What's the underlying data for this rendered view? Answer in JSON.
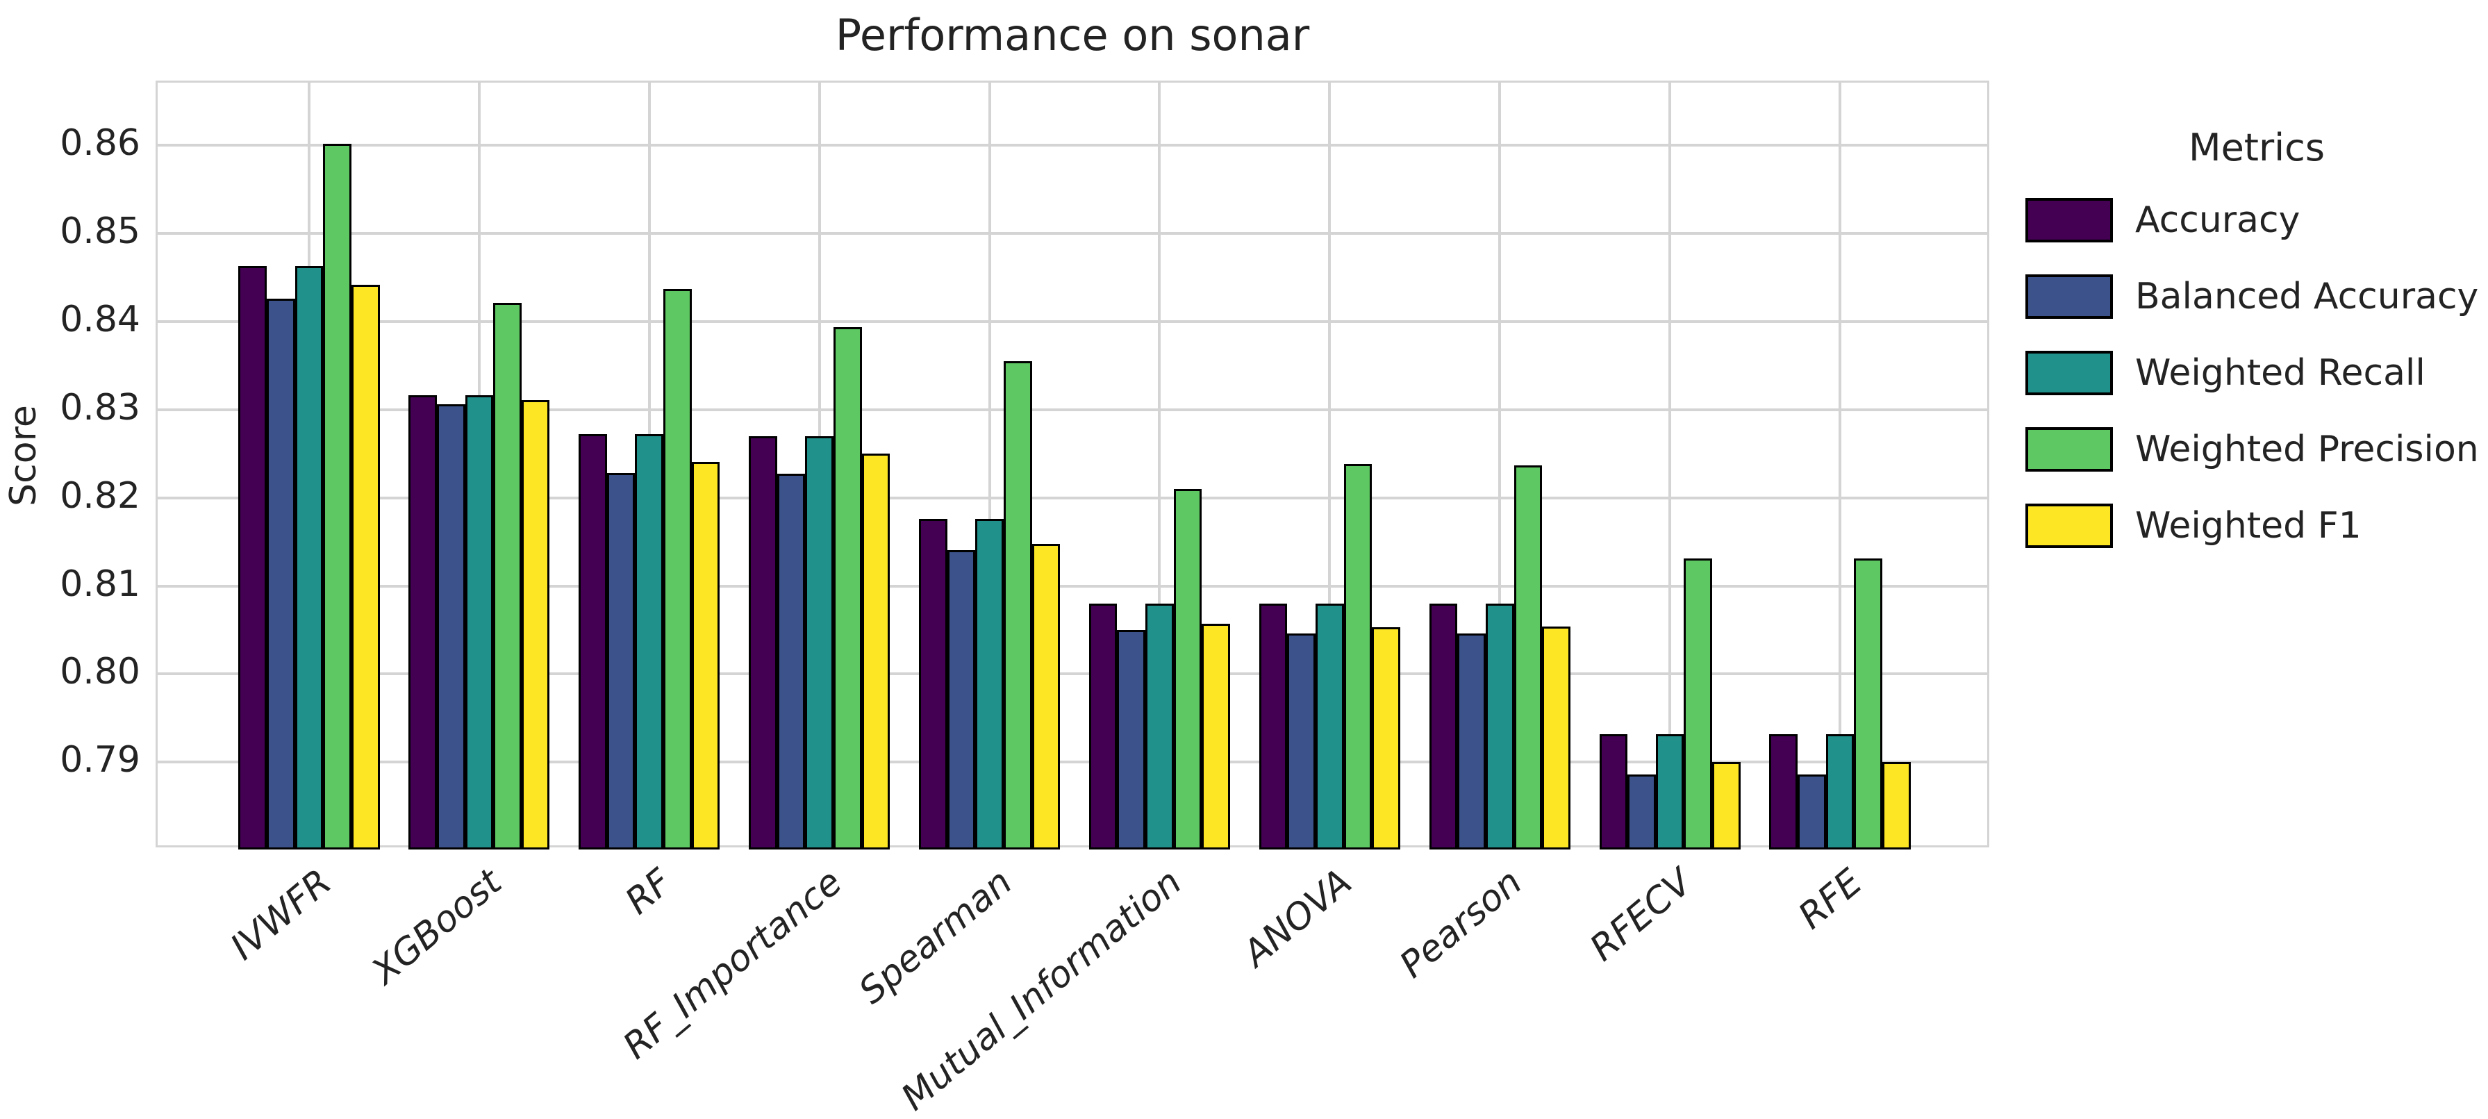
{
  "chart_data": {
    "type": "bar",
    "title": "Performance on sonar",
    "xlabel": "",
    "ylabel": "Score",
    "legend_title": "Metrics",
    "legend_position": "right",
    "grid": true,
    "categories": [
      "IVWFR",
      "XGBoost",
      "RF",
      "RF_Importance",
      "Spearman",
      "Mutual_Information",
      "ANOVA",
      "Pearson",
      "RFECV",
      "RFE"
    ],
    "series": [
      {
        "name": "Accuracy",
        "color": "#440154",
        "values": [
          0.8463,
          0.8316,
          0.8272,
          0.827,
          0.8176,
          0.808,
          0.808,
          0.808,
          0.7932,
          0.7932
        ]
      },
      {
        "name": "Balanced Accuracy",
        "color": "#3b528b",
        "values": [
          0.8426,
          0.8306,
          0.8228,
          0.8227,
          0.8141,
          0.805,
          0.8046,
          0.8046,
          0.7886,
          0.7886
        ]
      },
      {
        "name": "Weighted Recall",
        "color": "#21918c",
        "values": [
          0.8463,
          0.8316,
          0.8272,
          0.827,
          0.8176,
          0.808,
          0.808,
          0.808,
          0.7932,
          0.7932
        ]
      },
      {
        "name": "Weighted Precision",
        "color": "#5ec962",
        "values": [
          0.8602,
          0.8421,
          0.8437,
          0.8394,
          0.8355,
          0.821,
          0.8238,
          0.8237,
          0.8131,
          0.8131
        ]
      },
      {
        "name": "Weighted F1",
        "color": "#fde725",
        "values": [
          0.8442,
          0.8311,
          0.8241,
          0.825,
          0.8148,
          0.8057,
          0.8053,
          0.8054,
          0.79,
          0.79
        ]
      }
    ],
    "yticks": [
      "0.79",
      "0.80",
      "0.81",
      "0.82",
      "0.83",
      "0.84",
      "0.85",
      "0.86"
    ],
    "ylim": [
      0.7801,
      0.8671
    ],
    "xlim_units": [
      -0.89,
      9.89
    ],
    "bar_group_width_units": 0.83,
    "style": {
      "background": "#ffffff",
      "grid_color": "#d4d4d4",
      "text_color": "#232323",
      "bar_edge_color": "#000000"
    }
  }
}
